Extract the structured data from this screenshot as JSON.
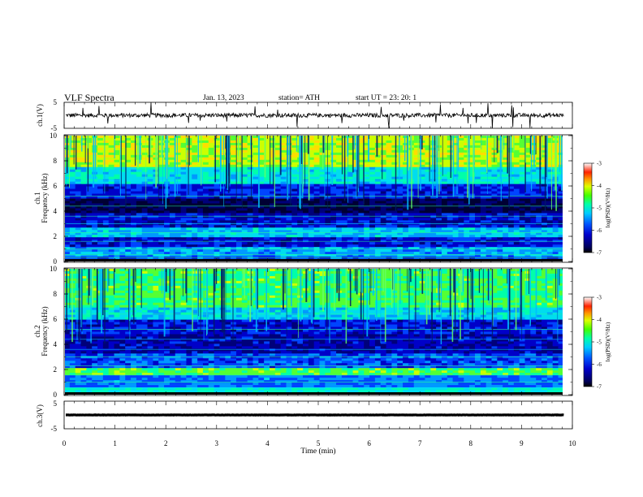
{
  "header": {
    "title": "VLF  Spectra",
    "date": "Jan.  13,  2023",
    "station": "station= ATH",
    "start": "start  UT  =   23: 20: 1"
  },
  "chart_data": {
    "type": "heatmap",
    "x_axis": {
      "label": "Time  (min)",
      "range": [
        0,
        10
      ],
      "ticks": [
        "0",
        "1",
        "2",
        "3",
        "4",
        "5",
        "6",
        "7",
        "8",
        "9",
        "10"
      ],
      "data_end": 9.83
    },
    "panels": [
      {
        "id": "ch1-wave",
        "kind": "waveform",
        "ylabel": "ch.1(V)",
        "ylim": [
          -5,
          5
        ],
        "yticks": [
          "5",
          "-5"
        ],
        "baseline": 0,
        "amplitude": 0.8
      },
      {
        "id": "ch1-spec",
        "kind": "spectrogram",
        "ylabel_top": "ch.1",
        "ylabel": "Frequency  (kHz)",
        "ylim": [
          0,
          10
        ],
        "yticks": [
          "0",
          "2",
          "4",
          "6",
          "8",
          "10"
        ]
      },
      {
        "id": "ch2-spec",
        "kind": "spectrogram",
        "ylabel_top": "ch.2",
        "ylabel": "Frequency  (kHz)",
        "ylim": [
          0,
          10
        ],
        "yticks": [
          "0",
          "2",
          "4",
          "6",
          "8",
          "10"
        ]
      },
      {
        "id": "ch3-wave",
        "kind": "waveform",
        "ylabel": "ch.3(V)",
        "ylim": [
          -5,
          5
        ],
        "yticks": [
          "5",
          "-5"
        ],
        "baseline": 0,
        "amplitude": 0.05
      }
    ],
    "colorbar": {
      "label": "log(PSD)(V²/Hz)",
      "range": [
        -7,
        -3
      ],
      "ticks": [
        "-3",
        "-4",
        "-5",
        "-6",
        "-7"
      ],
      "colors": [
        "#000000",
        "#0000cc",
        "#0044ff",
        "#00bbff",
        "#00ffaa",
        "#33ff00",
        "#ccff00",
        "#ffcc00",
        "#ff3300",
        "#ffffff"
      ]
    }
  }
}
